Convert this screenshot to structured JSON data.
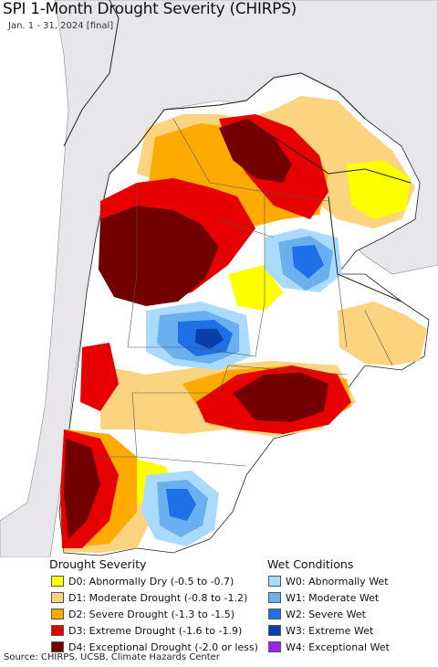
{
  "title": "SPI 1-Month Drought Severity (CHIRPS)",
  "subtitle": "Jan. 1 - 31, 2024 [final]",
  "legend": {
    "drought_heading": "Drought Severity",
    "wet_heading": "Wet Conditions",
    "drought_items": [
      {
        "label": "D0: Abnormally Dry (-0.5 to -0.7)",
        "color": "#ffff00"
      },
      {
        "label": "D1: Moderate Drought (-0.8 to -1.2)",
        "color": "#fcd37f"
      },
      {
        "label": "D2: Severe Drought (-1.3 to -1.5)",
        "color": "#ffaa00"
      },
      {
        "label": "D3: Extreme Drought (-1.6 to -1.9)",
        "color": "#e60000"
      },
      {
        "label": "D4: Exceptional Drought (-2.0 or less)",
        "color": "#730000"
      }
    ],
    "wet_items": [
      {
        "label": "W0: Abnormally Wet",
        "color": "#aadbff"
      },
      {
        "label": "W1: Moderate Wet",
        "color": "#6aaff0"
      },
      {
        "label": "W2: Severe Wet",
        "color": "#1f6fe6"
      },
      {
        "label": "W3: Extreme Wet",
        "color": "#0a3fa8"
      },
      {
        "label": "W4: Exceptional Wet",
        "color": "#a020f0"
      }
    ]
  },
  "source": "Source: CHIRPS, UCSB, Climate Hazards Center",
  "colors": {
    "ocean": "#ffffff",
    "outside_land": "#e8e6ea",
    "border": "#333333"
  }
}
